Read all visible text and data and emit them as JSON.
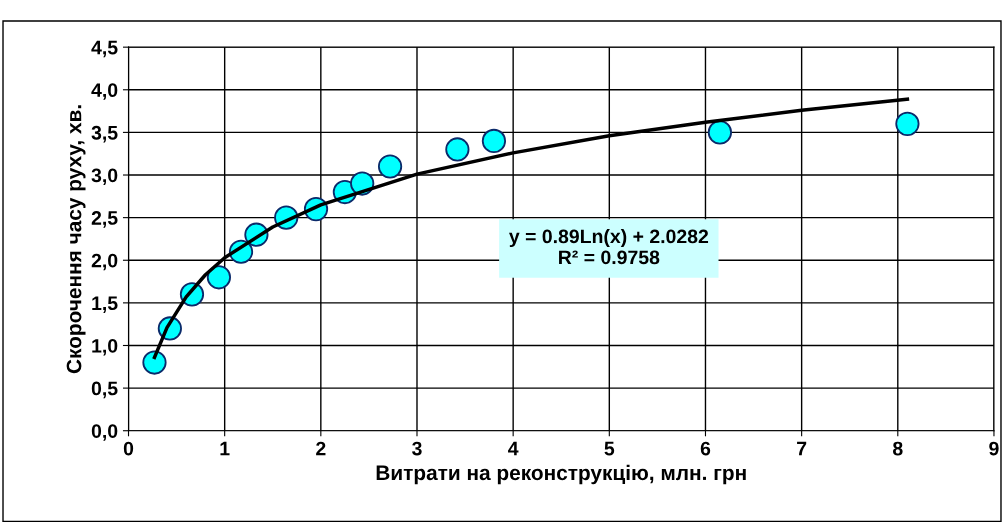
{
  "chart_data": {
    "type": "scatter",
    "xlabel": "Витрати на реконструкцію, млн. грн",
    "ylabel": "Скорочення часу руху, хв.",
    "x": [
      0.27,
      0.43,
      0.66,
      0.94,
      1.17,
      1.33,
      1.64,
      1.95,
      2.25,
      2.43,
      2.72,
      3.42,
      3.8,
      6.15,
      8.1
    ],
    "series": [
      {
        "color": "#00ffff",
        "values": [
          0.8,
          1.2,
          1.6,
          1.8,
          2.1,
          2.3,
          2.5,
          2.6,
          2.8,
          2.9,
          3.1,
          3.3,
          3.4,
          3.5,
          3.6
        ]
      },
      {
        "type": "line",
        "marker": "none",
        "color": "#000000",
        "x": [
          0.27,
          0.4,
          0.6,
          0.8,
          1,
          1.5,
          2,
          3,
          4,
          5,
          6,
          7,
          8.1
        ],
        "values": [
          0.86,
          1.21,
          1.57,
          1.83,
          2.03,
          2.39,
          2.65,
          3.01,
          3.26,
          3.46,
          3.62,
          3.76,
          3.89
        ]
      }
    ],
    "annotations": [
      "y = 0.89Ln(x) + 2.0282",
      "R² = 0.9758"
    ],
    "xlim": [
      0,
      9
    ],
    "xticks": [
      0,
      1,
      2,
      3,
      4,
      5,
      6,
      7,
      8,
      9
    ],
    "ylim": [
      0,
      4.5
    ],
    "yticks": [
      {
        "value": 0,
        "label": "0,0"
      },
      {
        "value": 0.5,
        "label": "0,5"
      },
      {
        "value": 1,
        "label": "1,0"
      },
      {
        "value": 1.5,
        "label": "1,5"
      },
      {
        "value": 2,
        "label": "2,0"
      },
      {
        "value": 2.5,
        "label": "2,5"
      },
      {
        "value": 3,
        "label": "3,0"
      },
      {
        "value": 3.5,
        "label": "3,5"
      },
      {
        "value": 4,
        "label": "4,0"
      },
      {
        "value": 4.5,
        "label": "4,5"
      }
    ],
    "grid": true,
    "marker": "circle",
    "legend": false
  }
}
